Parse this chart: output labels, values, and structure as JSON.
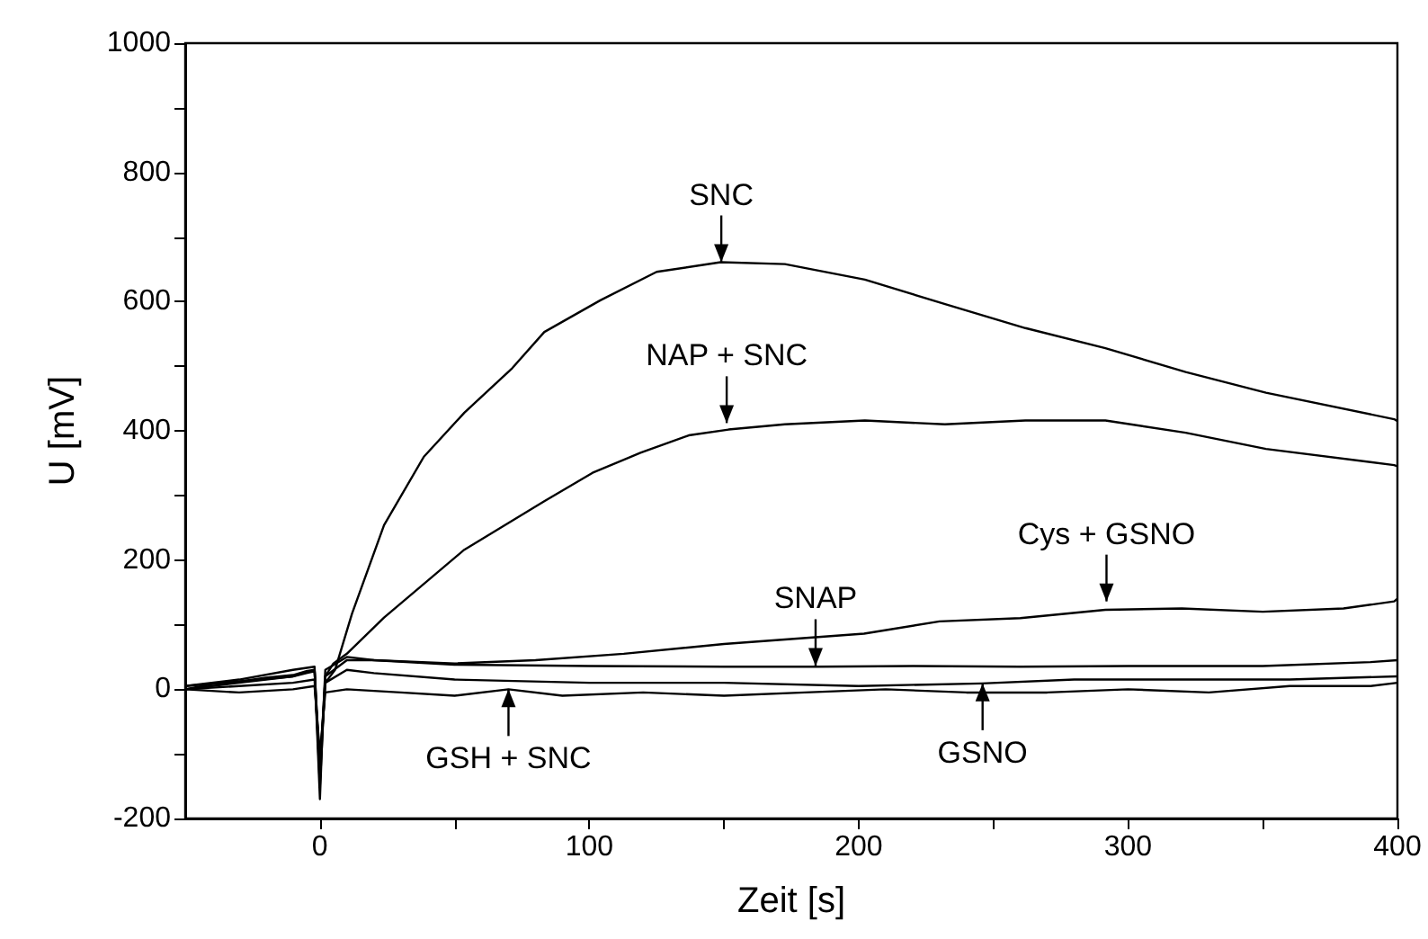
{
  "chart_data": {
    "type": "line",
    "xlabel": "Zeit [s]",
    "ylabel": "U [mV]",
    "xlim": [
      -50,
      400
    ],
    "ylim": [
      -200,
      1000
    ],
    "xticks": [
      0,
      {
        "value": 50,
        "label": null
      },
      100,
      {
        "value": 150,
        "label": null
      },
      200,
      {
        "value": 250,
        "label": null
      },
      300,
      {
        "value": 350,
        "label": null
      },
      400
    ],
    "yticks": [
      -200,
      {
        "value": -100,
        "label": null
      },
      0,
      {
        "value": 100,
        "label": null
      },
      200,
      {
        "value": 300,
        "label": null
      },
      400,
      {
        "value": 500,
        "label": null
      },
      600,
      {
        "value": 700,
        "label": null
      },
      800,
      {
        "value": 900,
        "label": null
      },
      1000
    ],
    "grid": false,
    "marker": "none",
    "line_style": "solid",
    "series": [
      {
        "color": "#000000",
        "x": [
          -50,
          -40,
          -30,
          -20,
          -10,
          -5,
          -2,
          0,
          1,
          2,
          5.6,
          11.9,
          23.8,
          38.6,
          53.6,
          71.4,
          83.3,
          104.1,
          125,
          148.8,
          172.6,
          202.3,
          232.1,
          261.9,
          291.6,
          321.4,
          351.2,
          398.8,
          400
        ],
        "values": [
          0,
          8,
          12,
          18,
          22,
          28,
          30,
          -170,
          -60,
          10,
          30,
          117,
          254,
          360,
          428,
          497,
          553,
          602,
          646,
          661,
          658,
          634,
          596,
          559,
          528,
          491,
          459,
          418,
          415
        ]
      },
      {
        "color": "#000000",
        "x": [
          -50,
          -40,
          -30,
          -20,
          -10,
          -5,
          -2,
          0,
          2,
          5,
          10,
          23.8,
          53.6,
          83.3,
          101.2,
          119,
          136.9,
          151.7,
          172.6,
          202.3,
          232,
          261.9,
          291.6,
          321.4,
          351.2,
          398.8,
          400
        ],
        "values": [
          0,
          5,
          10,
          15,
          20,
          25,
          28,
          -120,
          20,
          40,
          55,
          111,
          216,
          291,
          335,
          366,
          393,
          402,
          410,
          416,
          410,
          416,
          416,
          397,
          372,
          347,
          345
        ]
      },
      {
        "color": "#000000",
        "x": [
          -50,
          -30,
          -10,
          -2,
          0,
          2,
          10,
          20,
          50,
          80,
          112.8,
          150,
          202,
          230,
          260,
          291.6,
          320,
          350,
          380,
          398.8,
          400
        ],
        "values": [
          5,
          12,
          20,
          30,
          -150,
          20,
          45,
          45,
          40,
          45,
          55,
          70,
          86,
          105,
          110,
          123,
          125,
          120,
          125,
          136,
          140
        ]
      },
      {
        "color": "#000000",
        "x": [
          -50,
          -30,
          -10,
          -2,
          0,
          2,
          10,
          20,
          50,
          100,
          150,
          184.5,
          220,
          260,
          300,
          350,
          390,
          400
        ],
        "values": [
          5,
          15,
          30,
          35,
          -140,
          30,
          50,
          45,
          38,
          36,
          35,
          35,
          36,
          35,
          36,
          36,
          42,
          45
        ]
      },
      {
        "color": "#000000",
        "x": [
          -50,
          -30,
          -10,
          -2,
          0,
          2,
          10,
          30,
          50,
          70,
          90,
          120,
          150,
          180,
          210,
          240,
          270,
          300,
          330,
          360,
          390,
          400
        ],
        "values": [
          0,
          -5,
          0,
          5,
          -100,
          -5,
          0,
          -5,
          -10,
          0,
          -10,
          -5,
          -10,
          -5,
          0,
          -5,
          -5,
          0,
          -5,
          5,
          5,
          10
        ]
      },
      {
        "color": "#000000",
        "x": [
          -50,
          -30,
          -10,
          -2,
          0,
          2,
          10,
          20,
          50,
          100,
          150,
          200,
          245.6,
          280,
          320,
          360,
          400
        ],
        "values": [
          0,
          5,
          10,
          15,
          -120,
          10,
          30,
          25,
          15,
          10,
          10,
          5,
          9,
          15,
          15,
          15,
          20
        ]
      }
    ],
    "annotations": [
      {
        "text": "SNC",
        "x": 149,
        "y": 661
      },
      {
        "text": "NAP + SNC",
        "x": 151,
        "y": 412
      },
      {
        "text": "Cys + GSNO",
        "x": 292,
        "y": 136
      },
      {
        "text": "SNAP",
        "x": 184,
        "y": 36
      },
      {
        "text": "GSH + SNC",
        "x": 70,
        "y": 0
      },
      {
        "text": "GSNO",
        "x": 246,
        "y": 9
      }
    ]
  }
}
